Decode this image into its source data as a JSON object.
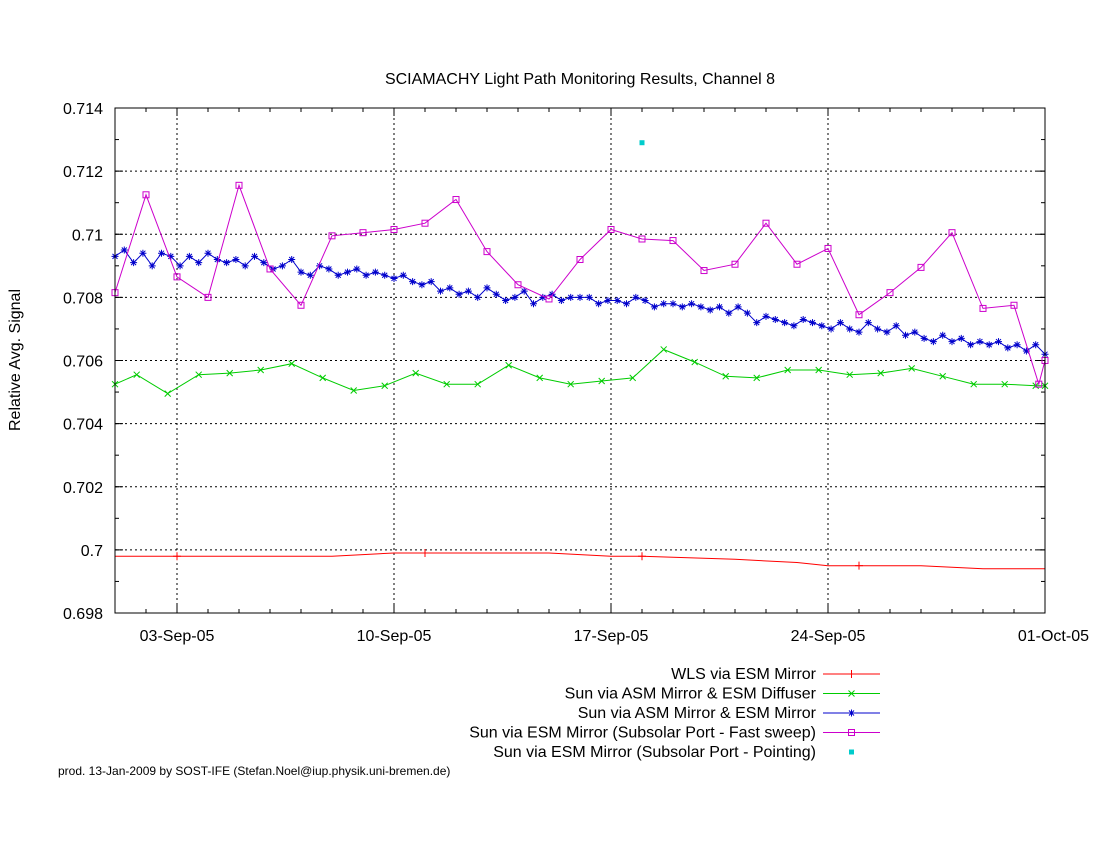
{
  "chart_data": {
    "type": "line",
    "title": "SCIAMACHY Light Path Monitoring Results, Channel 8",
    "xlabel": "",
    "ylabel": "Relative Avg. Signal",
    "x_domain": [
      0.0,
      30.0
    ],
    "x_origin_label": "2005-09-01",
    "ylim": [
      0.698,
      0.714
    ],
    "y_ticks": [
      0.698,
      0.7,
      0.702,
      0.704,
      0.706,
      0.708,
      0.71,
      0.712,
      0.714
    ],
    "y_tick_labels": [
      "0.698",
      "0.7",
      "0.702",
      "0.704",
      "0.706",
      "0.708",
      "0.71",
      "0.712",
      "0.714"
    ],
    "x_ticks": [
      2.0,
      9.0,
      16.0,
      23.0,
      30.0
    ],
    "x_tick_labels": [
      "03-Sep-05",
      "10-Sep-05",
      "17-Sep-05",
      "24-Sep-05",
      "01-Oct-05"
    ],
    "grid": true,
    "legend_position": "bottom-right, below plot",
    "series": [
      {
        "name": "WLS via ESM Mirror",
        "color": "#ff0000",
        "marker": "plus",
        "x": [
          0.0,
          2.0,
          5.0,
          7.0,
          9.0,
          10.0,
          12.0,
          14.0,
          16.0,
          17.0,
          20.0,
          22.0,
          23.0,
          24.0,
          26.0,
          28.0,
          30.0
        ],
        "values": [
          0.6998,
          0.6998,
          0.6998,
          0.6998,
          0.6999,
          0.6999,
          0.6999,
          0.6999,
          0.6998,
          0.6998,
          0.6997,
          0.6996,
          0.6995,
          0.6995,
          0.6995,
          0.6994,
          0.6994
        ],
        "marker_x": [
          2.0,
          10.0,
          17.0,
          24.0
        ]
      },
      {
        "name": "Sun via ASM Mirror & ESM Diffuser",
        "color": "#00cc00",
        "marker": "x",
        "x": [
          0.0,
          0.7,
          1.7,
          2.7,
          3.7,
          4.7,
          5.7,
          6.7,
          7.7,
          8.7,
          9.7,
          10.7,
          11.7,
          12.7,
          13.7,
          14.7,
          15.7,
          16.7,
          17.7,
          18.7,
          19.7,
          20.7,
          21.7,
          22.7,
          23.7,
          24.7,
          25.7,
          26.7,
          27.7,
          28.7,
          29.7,
          30.0
        ],
        "values": [
          0.70525,
          0.70555,
          0.70495,
          0.70555,
          0.7056,
          0.7057,
          0.7059,
          0.70545,
          0.70505,
          0.7052,
          0.7056,
          0.70525,
          0.70525,
          0.70585,
          0.70545,
          0.70525,
          0.70535,
          0.70545,
          0.70635,
          0.70595,
          0.7055,
          0.70545,
          0.7057,
          0.7057,
          0.70555,
          0.7056,
          0.70575,
          0.7055,
          0.70525,
          0.70525,
          0.7052,
          0.7052
        ]
      },
      {
        "name": "Sun via ASM Mirror & ESM Mirror",
        "color": "#0000cc",
        "marker": "star",
        "x": [
          0.0,
          0.3,
          0.6,
          0.9,
          1.2,
          1.5,
          1.8,
          2.1,
          2.4,
          2.7,
          3.0,
          3.3,
          3.6,
          3.9,
          4.2,
          4.5,
          4.8,
          5.1,
          5.4,
          5.7,
          6.0,
          6.3,
          6.6,
          6.9,
          7.2,
          7.5,
          7.8,
          8.1,
          8.4,
          8.7,
          9.0,
          9.3,
          9.6,
          9.9,
          10.2,
          10.5,
          10.8,
          11.1,
          11.4,
          11.7,
          12.0,
          12.3,
          12.6,
          12.9,
          13.2,
          13.5,
          13.8,
          14.1,
          14.4,
          14.7,
          15.0,
          15.3,
          15.6,
          15.9,
          16.2,
          16.5,
          16.8,
          17.1,
          17.4,
          17.7,
          18.0,
          18.3,
          18.6,
          18.9,
          19.2,
          19.5,
          19.8,
          20.1,
          20.4,
          20.7,
          21.0,
          21.3,
          21.6,
          21.9,
          22.2,
          22.5,
          22.8,
          23.1,
          23.4,
          23.7,
          24.0,
          24.3,
          24.6,
          24.9,
          25.2,
          25.5,
          25.8,
          26.1,
          26.4,
          26.7,
          27.0,
          27.3,
          27.6,
          27.9,
          28.2,
          28.5,
          28.8,
          29.1,
          29.4,
          29.7,
          30.0
        ],
        "values": [
          0.7093,
          0.7095,
          0.7091,
          0.7094,
          0.709,
          0.7094,
          0.7093,
          0.709,
          0.7093,
          0.7091,
          0.7094,
          0.7092,
          0.7091,
          0.7092,
          0.709,
          0.7093,
          0.7091,
          0.7089,
          0.709,
          0.7092,
          0.7088,
          0.7087,
          0.709,
          0.7089,
          0.7087,
          0.7088,
          0.7089,
          0.7087,
          0.7088,
          0.7087,
          0.7086,
          0.7087,
          0.7085,
          0.7084,
          0.7085,
          0.7082,
          0.7083,
          0.7081,
          0.7082,
          0.708,
          0.7083,
          0.7081,
          0.7079,
          0.708,
          0.7082,
          0.7078,
          0.708,
          0.7081,
          0.7079,
          0.708,
          0.708,
          0.708,
          0.7078,
          0.7079,
          0.7079,
          0.7078,
          0.708,
          0.7079,
          0.7077,
          0.7078,
          0.7078,
          0.7077,
          0.7078,
          0.7077,
          0.7076,
          0.7077,
          0.7075,
          0.7077,
          0.7075,
          0.7072,
          0.7074,
          0.7073,
          0.7072,
          0.7071,
          0.7073,
          0.7072,
          0.7071,
          0.707,
          0.7072,
          0.707,
          0.7069,
          0.7072,
          0.707,
          0.7069,
          0.7071,
          0.7068,
          0.7069,
          0.7067,
          0.7066,
          0.7068,
          0.7066,
          0.7067,
          0.7065,
          0.7066,
          0.7065,
          0.7066,
          0.7064,
          0.7065,
          0.7063,
          0.7065,
          0.7062
        ]
      },
      {
        "name": "Sun via ESM Mirror (Subsolar Port - Fast sweep)",
        "color": "#cc00cc",
        "marker": "square",
        "x": [
          0.0,
          1.0,
          2.0,
          3.0,
          4.0,
          5.0,
          6.0,
          7.0,
          8.0,
          9.0,
          10.0,
          11.0,
          12.0,
          13.0,
          14.0,
          15.0,
          16.0,
          17.0,
          18.0,
          19.0,
          20.0,
          21.0,
          22.0,
          23.0,
          24.0,
          25.0,
          26.0,
          27.0,
          28.0,
          29.0,
          29.8,
          30.0
        ],
        "values": [
          0.70815,
          0.71125,
          0.70865,
          0.708,
          0.71155,
          0.7089,
          0.70775,
          0.70995,
          0.71005,
          0.71015,
          0.71035,
          0.7111,
          0.70945,
          0.7084,
          0.70795,
          0.7092,
          0.71015,
          0.70985,
          0.7098,
          0.70885,
          0.70905,
          0.71035,
          0.70905,
          0.70955,
          0.70745,
          0.70815,
          0.70895,
          0.71005,
          0.70765,
          0.70775,
          0.70525,
          0.706
        ]
      },
      {
        "name": "Sun via ESM Mirror (Subsolar Port - Pointing)",
        "color": "#00cccc",
        "marker": "dot",
        "x": [
          17.0
        ],
        "values": [
          0.7129
        ]
      }
    ],
    "footer": "prod. 13-Jan-2009 by SOST-IFE (Stefan.Noel@iup.physik.uni-bremen.de)"
  }
}
